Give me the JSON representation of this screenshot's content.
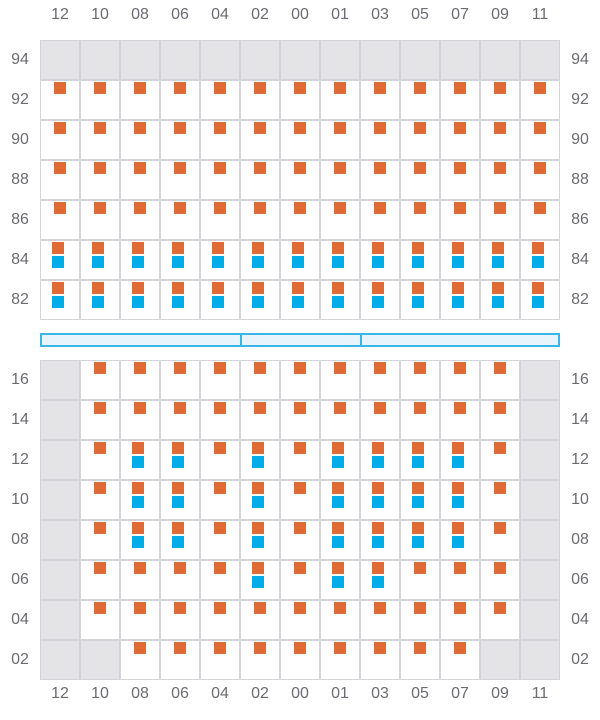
{
  "colors": {
    "occupied": "#e06b36",
    "secondary": "#00ade8",
    "unavailable": "#e4e4e7",
    "grid": "#d4d4d8",
    "bar_fill": "#e8f4fc",
    "bar_border": "#3bb4ea"
  },
  "columns": [
    "12",
    "10",
    "08",
    "06",
    "04",
    "02",
    "00",
    "01",
    "03",
    "05",
    "07",
    "09",
    "11"
  ],
  "legend": {
    "G": "unavailable",
    "O": "orange-marker",
    "B": "orange-and-blue-markers",
    "E": "empty"
  },
  "top_section": {
    "rows": [
      {
        "label": "94",
        "cells": "GGGGGGGGGGGGG"
      },
      {
        "label": "92",
        "cells": "OOOOOOOOOOOOO"
      },
      {
        "label": "90",
        "cells": "OOOOOOOOOOOOO"
      },
      {
        "label": "88",
        "cells": "OOOOOOOOOOOOO"
      },
      {
        "label": "86",
        "cells": "OOOOOOOOOOOOO"
      },
      {
        "label": "84",
        "cells": "BBBBBBBBBBBBB"
      },
      {
        "label": "82",
        "cells": "BBBBBBBBBBBBB"
      }
    ]
  },
  "divider_segments": 3,
  "bottom_section": {
    "rows": [
      {
        "label": "16",
        "cells": "GOOOOOOOOOOOG"
      },
      {
        "label": "14",
        "cells": "GOOOOOOOOOOOG"
      },
      {
        "label": "12",
        "cells": "GOBBOBOBBBBOG"
      },
      {
        "label": "10",
        "cells": "GOBBOBOBBBBOG"
      },
      {
        "label": "08",
        "cells": "GOBBOBOBBBBOG"
      },
      {
        "label": "06",
        "cells": "GOOOOBOBBOOOG"
      },
      {
        "label": "04",
        "cells": "GOOOOOOOOOOOG"
      },
      {
        "label": "02",
        "cells": "GGOOOOOOOOOGG"
      }
    ]
  }
}
